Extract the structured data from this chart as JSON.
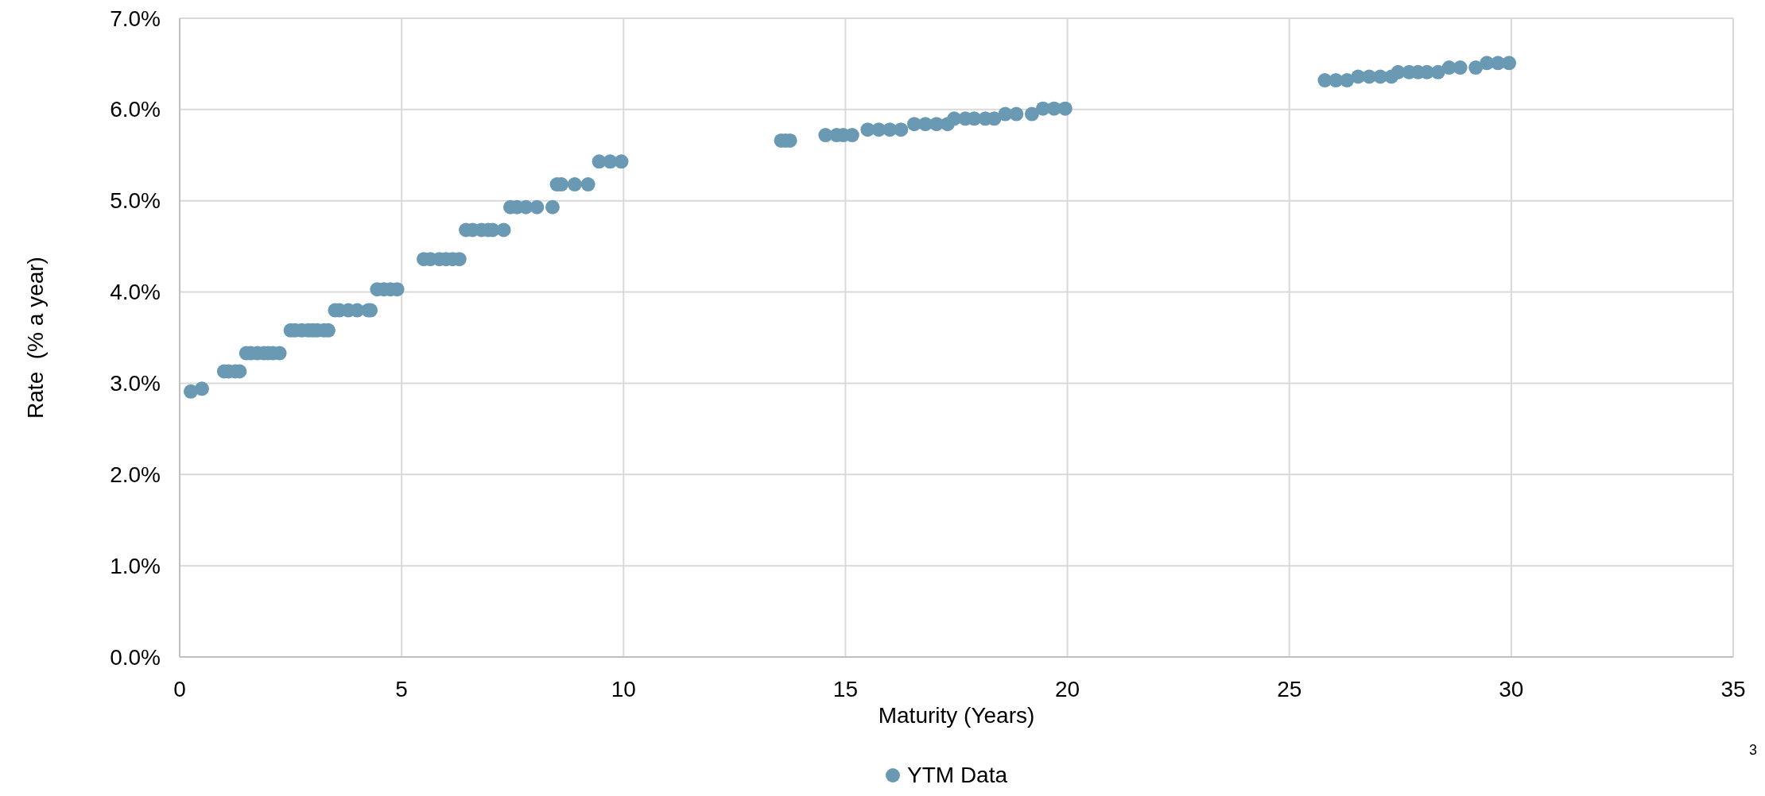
{
  "chart_data": {
    "type": "scatter",
    "xlabel": "Maturity (Years)",
    "ylabel": "Rate  (% a year)",
    "series": [
      {
        "name": "YTM Data",
        "color": "#6a9ab3",
        "x": [
          0.25,
          0.5,
          1.0,
          1.1,
          1.25,
          1.35,
          1.5,
          1.6,
          1.75,
          1.9,
          2.0,
          2.1,
          2.25,
          2.5,
          2.6,
          2.75,
          2.9,
          3.0,
          3.1,
          3.25,
          3.35,
          3.5,
          3.6,
          3.8,
          4.0,
          4.25,
          4.3,
          4.45,
          4.6,
          4.75,
          4.9,
          5.5,
          5.65,
          5.85,
          6.0,
          6.15,
          6.3,
          6.45,
          6.6,
          6.8,
          6.95,
          7.05,
          7.3,
          7.45,
          7.6,
          7.8,
          8.05,
          8.4,
          8.5,
          8.6,
          8.9,
          9.2,
          9.45,
          9.7,
          9.95,
          13.55,
          13.65,
          13.75,
          14.55,
          14.8,
          14.95,
          15.15,
          15.5,
          15.75,
          16.0,
          16.25,
          16.55,
          16.8,
          17.05,
          17.3,
          17.45,
          17.7,
          17.9,
          18.15,
          18.35,
          18.6,
          18.85,
          19.2,
          19.45,
          19.7,
          19.95,
          25.8,
          26.05,
          26.3,
          26.55,
          26.8,
          27.05,
          27.3,
          27.45,
          27.7,
          27.9,
          28.1,
          28.35,
          28.6,
          28.85,
          29.2,
          29.45,
          29.7,
          29.95
        ],
        "values": [
          2.91,
          2.94,
          3.13,
          3.13,
          3.13,
          3.13,
          3.33,
          3.33,
          3.33,
          3.33,
          3.33,
          3.33,
          3.33,
          3.58,
          3.58,
          3.58,
          3.58,
          3.58,
          3.58,
          3.58,
          3.58,
          3.8,
          3.8,
          3.8,
          3.8,
          3.8,
          3.8,
          4.03,
          4.03,
          4.03,
          4.03,
          4.36,
          4.36,
          4.36,
          4.36,
          4.36,
          4.36,
          4.68,
          4.68,
          4.68,
          4.68,
          4.68,
          4.68,
          4.93,
          4.93,
          4.93,
          4.93,
          4.93,
          5.18,
          5.18,
          5.18,
          5.18,
          5.43,
          5.43,
          5.43,
          5.66,
          5.66,
          5.66,
          5.72,
          5.72,
          5.72,
          5.72,
          5.78,
          5.78,
          5.78,
          5.78,
          5.84,
          5.84,
          5.84,
          5.84,
          5.9,
          5.9,
          5.9,
          5.9,
          5.9,
          5.95,
          5.95,
          5.95,
          6.01,
          6.01,
          6.01,
          6.32,
          6.32,
          6.32,
          6.36,
          6.36,
          6.36,
          6.36,
          6.41,
          6.41,
          6.41,
          6.41,
          6.41,
          6.46,
          6.46,
          6.46,
          6.51,
          6.51,
          6.51
        ]
      }
    ],
    "xlim": [
      0,
      35
    ],
    "xticks": [
      0,
      5,
      10,
      15,
      20,
      25,
      30,
      35
    ],
    "ylim": [
      0,
      7
    ],
    "yticks": [
      {
        "value": 0,
        "label": "0.0%"
      },
      {
        "value": 1,
        "label": "1.0%"
      },
      {
        "value": 2,
        "label": "2.0%"
      },
      {
        "value": 3,
        "label": "3.0%"
      },
      {
        "value": 4,
        "label": "4.0%"
      },
      {
        "value": 5,
        "label": "5.0%"
      },
      {
        "value": 6,
        "label": "6.0%"
      },
      {
        "value": 7,
        "label": "7.0%"
      }
    ],
    "grid": true,
    "legend": "bottom",
    "marker": "circle",
    "annotations": [
      "3"
    ]
  }
}
